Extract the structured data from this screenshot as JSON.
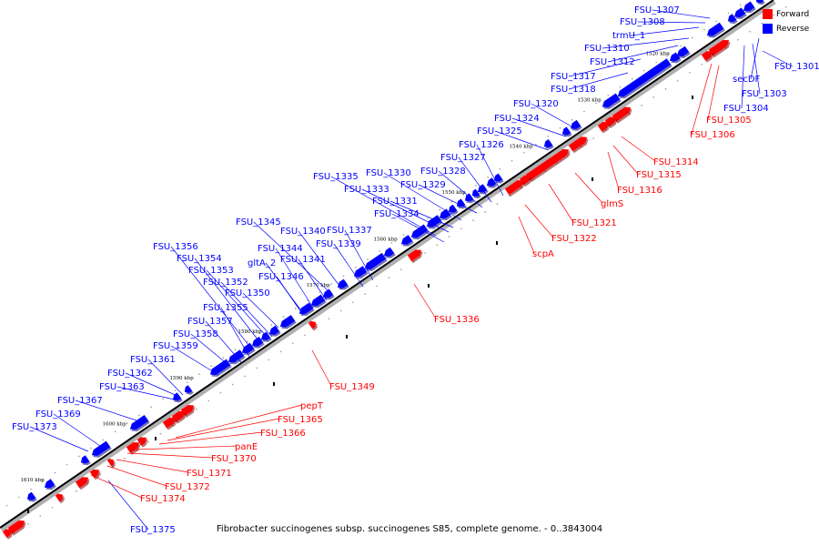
{
  "colors": {
    "forward": "#ff0000",
    "reverse": "#0000ff",
    "axis": "#000000"
  },
  "legend": {
    "forward": "Forward",
    "reverse": "Reverse"
  },
  "caption": "Fibrobacter succinogenes subsp. succinogenes S85, complete genome. - 0..3843004",
  "ticks": [
    "1520 kbp",
    "1530 kbp",
    "1540 kbp",
    "1550 kbp",
    "1560 kbp",
    "1570 kbp",
    "1580 kbp",
    "1590 kbp",
    "1600 kbp",
    "1610 kbp"
  ],
  "reverse_labels": [
    "FSU_1307",
    "FSU_1308",
    "trmU_1",
    "FSU_1310",
    "FSU_1312",
    "FSU_1317",
    "FSU_1318",
    "FSU_1320",
    "FSU_1324",
    "FSU_1325",
    "FSU_1326",
    "FSU_1327",
    "FSU_1328",
    "FSU_1329",
    "FSU_1330",
    "FSU_1335",
    "FSU_1333",
    "FSU_1331",
    "FSU_1334",
    "FSU_1345",
    "FSU_1340",
    "FSU_1337",
    "FSU_1339",
    "FSU_1344",
    "FSU_1341",
    "gltA_2",
    "FSU_1356",
    "FSU_1354",
    "FSU_1353",
    "FSU_1346",
    "FSU_1352",
    "FSU_1350",
    "FSU_1355",
    "FSU_1357",
    "FSU_1358",
    "FSU_1359",
    "FSU_1361",
    "FSU_1362",
    "FSU_1363",
    "FSU_1367",
    "FSU_1369",
    "FSU_1373",
    "FSU_1375",
    "FSU_1301",
    "secDF",
    "FSU_1303",
    "FSU_1304"
  ],
  "forward_labels": [
    "FSU_1305",
    "FSU_1306",
    "FSU_1314",
    "FSU_1315",
    "FSU_1316",
    "glmS",
    "FSU_1321",
    "FSU_1322",
    "scpA",
    "FSU_1336",
    "FSU_1349",
    "pepT",
    "FSU_1365",
    "FSU_1366",
    "panE",
    "FSU_1370",
    "FSU_1371",
    "FSU_1372",
    "FSU_1374"
  ]
}
